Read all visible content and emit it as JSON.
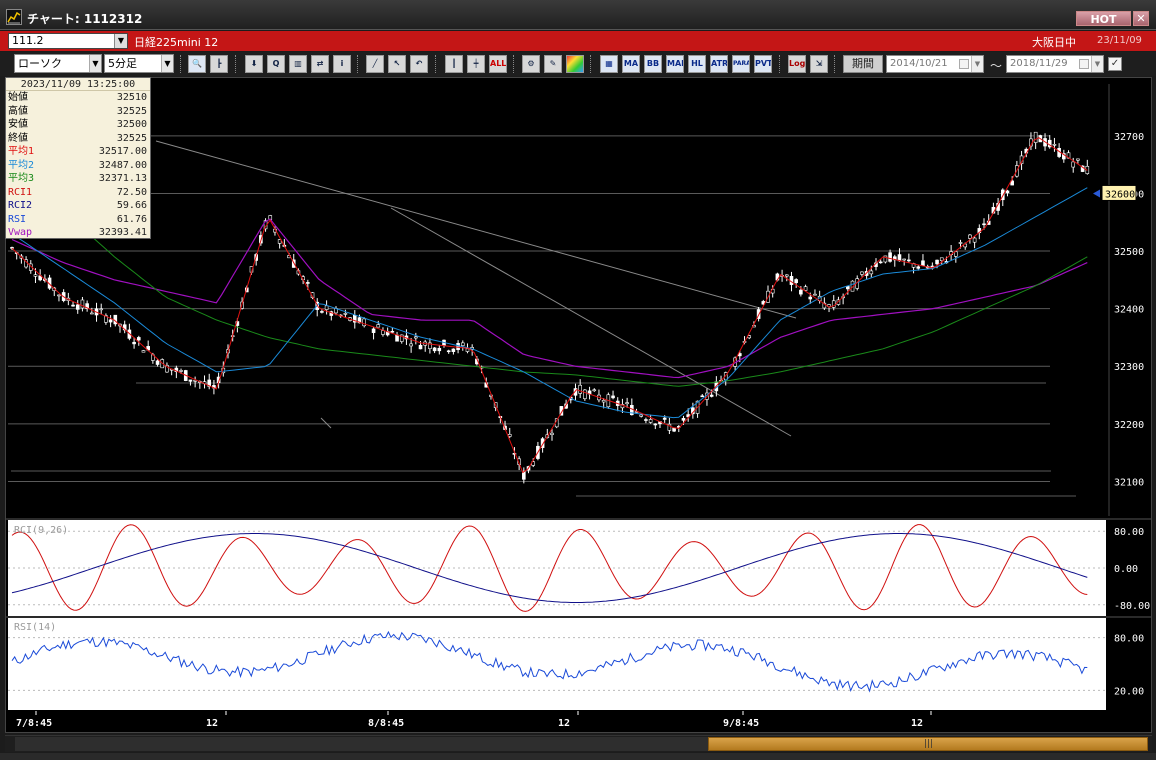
{
  "window": {
    "title": "チャート: 1112312",
    "hot_label": "HOT",
    "close_label": "✕"
  },
  "symbol": {
    "code": "111.2",
    "name": "日経225mini 12",
    "exchange": "大阪日中",
    "date": "23/11/09"
  },
  "toolbar": {
    "chart_type": "ローソク",
    "interval": "5分足",
    "indicator_buttons": [
      "BB",
      "MAE",
      "HL",
      "ATR",
      "PARA",
      "PVT"
    ],
    "log_label": "Log",
    "all_label": "ALL",
    "period_label": "期間",
    "date_from": "2014/10/21",
    "date_to": "2018/11/29",
    "range_sep": "〜"
  },
  "data_window": {
    "datetime": "2023/11/09 13:25:00",
    "rows": [
      {
        "label": "始値",
        "value": "32510",
        "color": "#000000"
      },
      {
        "label": "高値",
        "value": "32525",
        "color": "#000000"
      },
      {
        "label": "安値",
        "value": "32500",
        "color": "#000000"
      },
      {
        "label": "終値",
        "value": "32525",
        "color": "#000000"
      },
      {
        "label": "平均1",
        "value": "32517.00",
        "color": "#e01010"
      },
      {
        "label": "平均2",
        "value": "32487.00",
        "color": "#1a8ad8"
      },
      {
        "label": "平均3",
        "value": "32371.13",
        "color": "#1a8a1a"
      },
      {
        "label": "RCI1",
        "value": "72.50",
        "color": "#d01010"
      },
      {
        "label": "RCI2",
        "value": "59.66",
        "color": "#10108a"
      },
      {
        "label": "RSI",
        "value": "61.76",
        "color": "#1a4ad8"
      },
      {
        "label": "Vwap",
        "value": "32393.41",
        "color": "#a010c0"
      }
    ]
  },
  "price_axis": {
    "ticks": [
      "32700",
      "32600",
      "32500",
      "32400",
      "32300",
      "32200",
      "32100"
    ],
    "current_marker": "32600"
  },
  "rci_panel": {
    "title": "RCI(9,26)",
    "ticks": [
      "80.00",
      "0.00",
      "-80.00"
    ]
  },
  "rsi_panel": {
    "title": "RSI(14)",
    "ticks": [
      "80.00",
      "20.00"
    ]
  },
  "time_axis": {
    "labels": [
      "7/8:45",
      "12",
      "8/8:45",
      "12",
      "9/8:45",
      "12"
    ]
  },
  "colors": {
    "candle_up": "#ffffff",
    "candle_down": "#000000",
    "ma1": "#e01010",
    "ma2": "#1a8ad8",
    "ma3": "#1a8a1a",
    "vwap": "#a010c0",
    "rci1": "#d01010",
    "rci2": "#10108a",
    "rsi": "#1a4ad8",
    "title_bar": "#c41616"
  },
  "chart_data": {
    "type": "candlestick",
    "price_range": [
      32040,
      32790
    ],
    "sessions": [
      "7/8:45",
      "8/8:45",
      "9/8:45"
    ],
    "ma1_samples": [
      32505,
      32420,
      32380,
      32300,
      32260,
      32560,
      32400,
      32370,
      32340,
      32330,
      32110,
      32260,
      32230,
      32190,
      32290,
      32460,
      32400,
      32490,
      32470,
      32540,
      32700,
      32640
    ],
    "ma2_samples": [
      32530,
      32470,
      32410,
      32340,
      32290,
      32300,
      32410,
      32380,
      32350,
      32330,
      32290,
      32240,
      32220,
      32210,
      32280,
      32380,
      32430,
      32460,
      32470,
      32510,
      32560,
      32610
    ],
    "ma3_samples": [
      32640,
      32570,
      32490,
      32420,
      32380,
      32350,
      32330,
      32320,
      32310,
      32300,
      32290,
      32285,
      32275,
      32265,
      32275,
      32290,
      32310,
      32330,
      32360,
      32400,
      32440,
      32490
    ],
    "vwap_samples": [
      32520,
      32480,
      32450,
      32430,
      32410,
      32560,
      32450,
      32390,
      32380,
      32380,
      32320,
      32300,
      32290,
      32280,
      32300,
      32350,
      32380,
      32390,
      32400,
      32420,
      32440,
      32480
    ]
  }
}
